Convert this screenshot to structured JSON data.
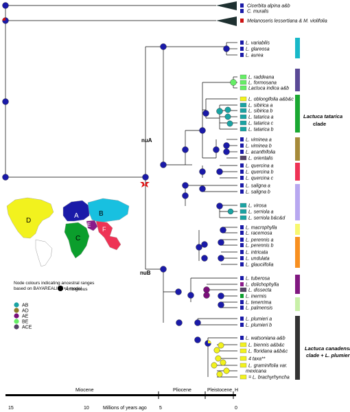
{
  "outgroups": [
    {
      "label": "Cicerbita alpina a&b"
    },
    {
      "label": "C. muralis"
    },
    {
      "label": "Melanoseris lessertiana & M. violifolia"
    }
  ],
  "taxa": [
    {
      "label": "L. variabilis",
      "range": "A"
    },
    {
      "label": "L. glareosa",
      "range": "A"
    },
    {
      "label": "L. aurea",
      "range": "A"
    },
    {
      "label": "L. raddeana",
      "range": "BE"
    },
    {
      "label": "L. formosana",
      "range": "BE"
    },
    {
      "label": "Lactuca indica a&b",
      "range": "BE"
    },
    {
      "label": "L. oblongifolia a&b&c",
      "range": "D"
    },
    {
      "label": "L. sibirica a",
      "range": "AB"
    },
    {
      "label": "L. sibirica b",
      "range": "AB"
    },
    {
      "label": "L. tatarica a",
      "range": "AB"
    },
    {
      "label": "L. tatarica c",
      "range": "AB"
    },
    {
      "label": "L. tatarica b",
      "range": "AB"
    },
    {
      "label": "L. viminea a",
      "range": "A"
    },
    {
      "label": "L. viminea b",
      "range": "A"
    },
    {
      "label": "L. acanthifolia",
      "range": "A"
    },
    {
      "label": "L. orientalis",
      "range": "ACE"
    },
    {
      "label": "L. quercina a",
      "range": "A"
    },
    {
      "label": "L. quercina b",
      "range": "A"
    },
    {
      "label": "L. quercina c",
      "range": "A"
    },
    {
      "label": "L. saligna a",
      "range": "A"
    },
    {
      "label": "L. saligna b",
      "range": "A"
    },
    {
      "label": "L. virosa",
      "range": "AB"
    },
    {
      "label": "L. serriola a",
      "range": "AB"
    },
    {
      "label": "L. serriola b&c&d",
      "range": "AB"
    },
    {
      "label": "L. macrophylla",
      "range": "A"
    },
    {
      "label": "L. racemosa",
      "range": "A"
    },
    {
      "label": "L. perennis a",
      "range": "A"
    },
    {
      "label": "L. perennis b",
      "range": "A"
    },
    {
      "label": "L. intricata",
      "range": "A"
    },
    {
      "label": "L. undulata",
      "range": "A"
    },
    {
      "label": "L. glauciifolia",
      "range": "A"
    },
    {
      "label": "L. tuberosa",
      "range": "A"
    },
    {
      "label": "L. dolichophylla",
      "range": "E"
    },
    {
      "label": "L. dissecta",
      "range": "ACE"
    },
    {
      "label": "L. inermis",
      "range": "C"
    },
    {
      "label": "L. tenerrima",
      "range": "A"
    },
    {
      "label": "L. palmensis",
      "range": "A"
    },
    {
      "label": "L. plumieri a",
      "range": "A"
    },
    {
      "label": "L. plumieri b",
      "range": "A"
    },
    {
      "label": "L. watsoniana a&b",
      "range": "A"
    },
    {
      "label": "L. biennis a&b&c",
      "range": "D"
    },
    {
      "label": "L. floridana a&b&c",
      "range": "D"
    },
    {
      "label": "4 taxa**",
      "range": "D"
    },
    {
      "label": "L. graminifolia var.",
      "range": "D"
    },
    {
      "label": "mexicana",
      "range": ""
    },
    {
      "label": "= L. brachyrhyncha",
      "range": "D"
    }
  ],
  "clade_labels": {
    "nuA": "nuA",
    "nuB": "nuB",
    "tatarica_line1": "Lactuca tatarica",
    "tatarica_line2": "clade",
    "canadensis_line1": "Lactuca canadensis",
    "canadensis_line2": "clade + L. plumieri"
  },
  "map_labels": [
    "A",
    "B",
    "C",
    "D",
    "E",
    "F"
  ],
  "legend": {
    "title_line1": "Node colours indicating ancestral ranges",
    "title_line2": "based on BAYAREALIKE+J model",
    "ambiguous": "Ambiguous",
    "items": [
      {
        "code": "AB",
        "color": "#1aa3a3"
      },
      {
        "code": "AD",
        "color": "#8c7a2a"
      },
      {
        "code": "AE",
        "color": "#7a0f7a"
      },
      {
        "code": "BE",
        "color": "#66ee66"
      },
      {
        "code": "ACE",
        "color": "#554466"
      }
    ]
  },
  "range_colors": {
    "A": "#1a1aa8",
    "B": "#18c0e0",
    "C": "#0b9e2c",
    "D": "#f2f21e",
    "E": "#8a1a8a",
    "F": "#ee3355",
    "AB": "#1aa3a3",
    "BE": "#66ee66",
    "ACE": "#554466"
  },
  "timescale": {
    "epochs": [
      "Miocene",
      "Pliocene",
      "Pleistocene",
      "H"
    ],
    "ticks": [
      "15",
      "10",
      "5",
      "0"
    ],
    "axis_label": "Millions of years ago"
  }
}
